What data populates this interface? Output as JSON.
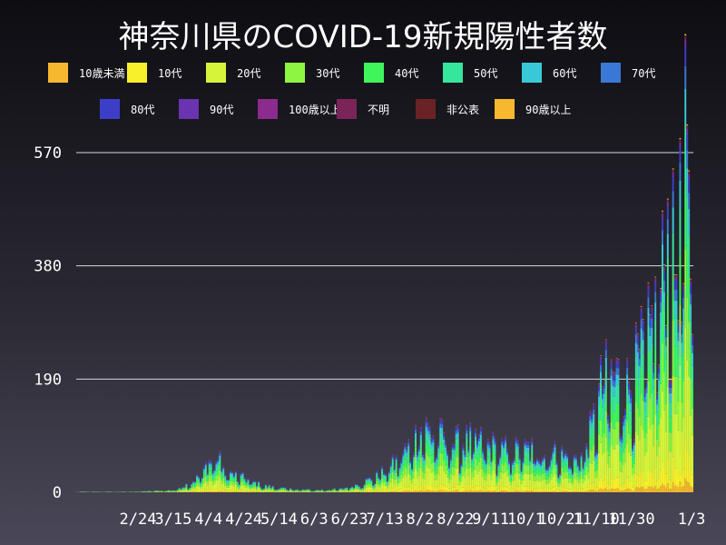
{
  "chart_data": {
    "type": "bar",
    "stacked": true,
    "title": "神奈川県のCOVID-19新規陽性者数",
    "xlabel": "",
    "ylabel": "",
    "ylim": [
      0,
      570
    ],
    "y_ticks": [
      "0",
      "190",
      "380",
      "570"
    ],
    "x_tick_labels": [
      "2/24",
      "3/15",
      "4/4",
      "4/24",
      "5/14",
      "6/3",
      "6/23",
      "7/13",
      "8/2",
      "8/22",
      "9/11",
      "10/1",
      "10/21",
      "11/10",
      "11/30",
      "1/3"
    ],
    "x_tick_days": [
      35,
      55,
      75,
      95,
      115,
      135,
      155,
      175,
      195,
      215,
      235,
      255,
      275,
      295,
      315,
      349
    ],
    "day_count": 350,
    "grid": true,
    "legend_position": "top",
    "series": [
      {
        "name": "10歳未満",
        "color": "#f5b82e"
      },
      {
        "name": "10代",
        "color": "#f7f02a"
      },
      {
        "name": "20代",
        "color": "#d6f53a"
      },
      {
        "name": "30代",
        "color": "#8ef542"
      },
      {
        "name": "40代",
        "color": "#3ef55c"
      },
      {
        "name": "50代",
        "color": "#36e69c"
      },
      {
        "name": "60代",
        "color": "#38c9d8"
      },
      {
        "name": "70代",
        "color": "#3a78d6"
      },
      {
        "name": "80代",
        "color": "#3c3ec8"
      },
      {
        "name": "90代",
        "color": "#6a33b0"
      },
      {
        "name": "100歳以上",
        "color": "#8c2a8e"
      },
      {
        "name": "不明",
        "color": "#7a2458"
      },
      {
        "name": "非公表",
        "color": "#6b2226"
      },
      {
        "name": "90歳以上",
        "color": "#f5b82e"
      }
    ],
    "stack_fractions": [
      0.03,
      0.08,
      0.25,
      0.17,
      0.14,
      0.13,
      0.08,
      0.05,
      0.04,
      0.015,
      0.003,
      0.005,
      0.004,
      0.003
    ],
    "key_points": [
      {
        "day": 0,
        "value": 1
      },
      {
        "day": 30,
        "value": 1
      },
      {
        "day": 55,
        "value": 4
      },
      {
        "day": 65,
        "value": 18
      },
      {
        "day": 70,
        "value": 30
      },
      {
        "day": 74,
        "value": 50
      },
      {
        "day": 79,
        "value": 62
      },
      {
        "day": 85,
        "value": 35
      },
      {
        "day": 95,
        "value": 25
      },
      {
        "day": 105,
        "value": 12
      },
      {
        "day": 120,
        "value": 6
      },
      {
        "day": 135,
        "value": 4
      },
      {
        "day": 150,
        "value": 6
      },
      {
        "day": 160,
        "value": 15
      },
      {
        "day": 170,
        "value": 28
      },
      {
        "day": 180,
        "value": 50
      },
      {
        "day": 190,
        "value": 85
      },
      {
        "day": 196,
        "value": 115
      },
      {
        "day": 202,
        "value": 100
      },
      {
        "day": 215,
        "value": 85
      },
      {
        "day": 225,
        "value": 90
      },
      {
        "day": 235,
        "value": 80
      },
      {
        "day": 245,
        "value": 70
      },
      {
        "day": 255,
        "value": 75
      },
      {
        "day": 265,
        "value": 70
      },
      {
        "day": 275,
        "value": 65
      },
      {
        "day": 285,
        "value": 55
      },
      {
        "day": 292,
        "value": 110
      },
      {
        "day": 298,
        "value": 190
      },
      {
        "day": 305,
        "value": 200
      },
      {
        "day": 312,
        "value": 180
      },
      {
        "day": 318,
        "value": 220
      },
      {
        "day": 325,
        "value": 270
      },
      {
        "day": 330,
        "value": 320
      },
      {
        "day": 335,
        "value": 440
      },
      {
        "day": 340,
        "value": 380
      },
      {
        "day": 345,
        "value": 575
      },
      {
        "day": 349,
        "value": 330
      }
    ]
  }
}
